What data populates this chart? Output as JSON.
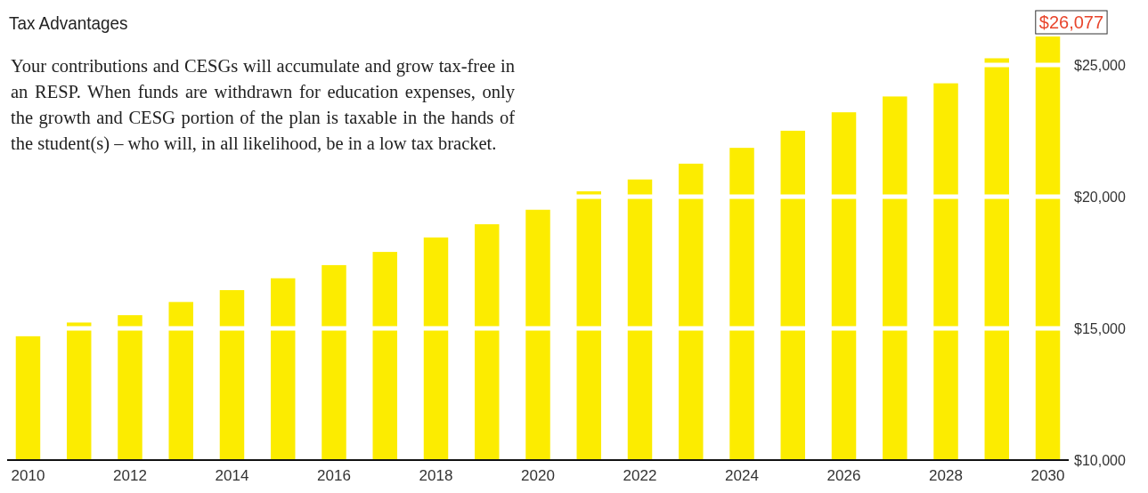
{
  "chart_data": {
    "type": "bar",
    "title": "Tax Advantages",
    "subtitle": "Your contributions and CESGs will accumulate and grow tax-free in an RESP. When funds are withdrawn for education expenses, only the growth and CESG portion of the plan is taxable in the hands of the student(s) – who will, in all likelihood, be in a low tax bracket.",
    "categories": [
      "2010",
      null,
      "2012",
      null,
      "2014",
      null,
      "2016",
      null,
      "2018",
      null,
      "2020",
      null,
      "2022",
      null,
      "2024",
      null,
      "2026",
      null,
      "2028",
      null,
      "2030"
    ],
    "values": [
      14700,
      15220,
      15500,
      16000,
      16450,
      16900,
      17400,
      17900,
      18450,
      18950,
      19500,
      20200,
      20650,
      21250,
      21850,
      22500,
      23200,
      23800,
      24300,
      25250,
      26077
    ],
    "value_labels": [
      null,
      null,
      null,
      null,
      null,
      null,
      null,
      null,
      null,
      null,
      null,
      null,
      null,
      null,
      null,
      null,
      null,
      null,
      null,
      null,
      "$26,077"
    ],
    "color": "#fcec00",
    "ylim": [
      10000,
      26077
    ],
    "yticks": [
      {
        "value": 10000,
        "label": "$10,000"
      },
      {
        "value": 15000,
        "label": "$15,000"
      },
      {
        "value": 20000,
        "label": "$20,000"
      },
      {
        "value": 25000,
        "label": "$25,000"
      }
    ],
    "grid": "y"
  }
}
